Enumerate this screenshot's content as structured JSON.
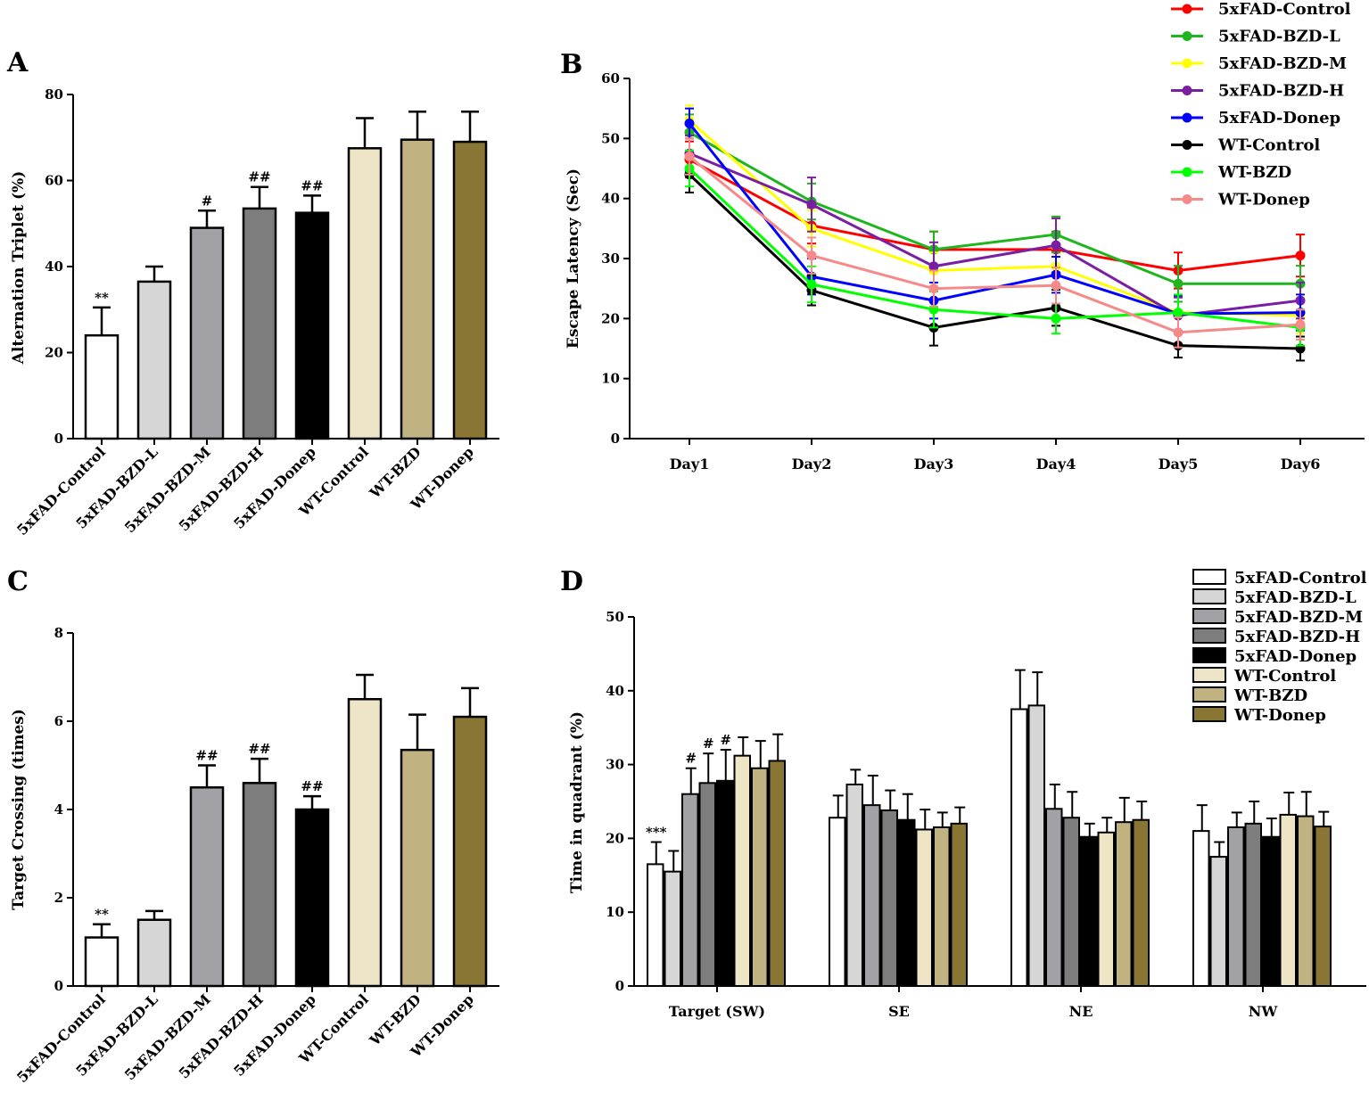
{
  "colors": {
    "5xFAD-Control": "#ffffff",
    "5xFAD-BZD-L": "#d6d6d6",
    "5xFAD-BZD-M": "#a2a2a6",
    "5xFAD-BZD-H": "#7d7d7d",
    "5xFAD-Donep": "#000000",
    "WT-Control": "#ede5c6",
    "WT-BZD": "#c1b381",
    "WT-Donep": "#8a7634"
  },
  "line_colors": {
    "5xFAD-Control": "#ff0000",
    "5xFAD-BZD-L": "#1fb51f",
    "5xFAD-BZD-M": "#ffff00",
    "5xFAD-BZD-H": "#7a1fa2",
    "5xFAD-Donep": "#0000ff",
    "WT-Control": "#000000",
    "WT-BZD": "#00ff00",
    "WT-Donep": "#f48a8a"
  },
  "chart_data": [
    {
      "panel": "A",
      "type": "bar",
      "ylabel": "Alternation Triplet (%)",
      "ylim": [
        0,
        80
      ],
      "yticks": [
        0,
        20,
        40,
        60,
        80
      ],
      "categories": [
        "5xFAD-Control",
        "5xFAD-BZD-L",
        "5xFAD-BZD-M",
        "5xFAD-BZD-H",
        "5xFAD-Donep",
        "WT-Control",
        "WT-BZD",
        "WT-Donep"
      ],
      "values": [
        24,
        36.5,
        49,
        53.5,
        52.5,
        67.5,
        69.5,
        69
      ],
      "errors": [
        6.5,
        3.5,
        4,
        5,
        4,
        7,
        6.5,
        7
      ],
      "annotations": [
        "**",
        "",
        "#",
        "##",
        "##",
        "",
        "",
        ""
      ]
    },
    {
      "panel": "B",
      "type": "line",
      "ylabel": "Escape Latency (Sec)",
      "ylim": [
        0,
        60
      ],
      "yticks": [
        0,
        10,
        20,
        30,
        40,
        50,
        60
      ],
      "x": [
        "Day1",
        "Day2",
        "Day3",
        "Day4",
        "Day5",
        "Day6"
      ],
      "series": [
        {
          "name": "5xFAD-Control",
          "values": [
            46.5,
            35.5,
            31.5,
            31.5,
            28,
            30.5
          ],
          "errors": [
            3,
            3,
            3,
            3,
            3,
            3.5
          ]
        },
        {
          "name": "5xFAD-BZD-L",
          "values": [
            51,
            39.5,
            31.5,
            34,
            25.8,
            25.8
          ],
          "errors": [
            3,
            3,
            3,
            3,
            3,
            3
          ]
        },
        {
          "name": "5xFAD-BZD-M",
          "values": [
            53,
            35,
            28,
            28.7,
            21,
            20.5
          ],
          "errors": [
            2.5,
            3,
            3,
            3,
            3,
            3
          ]
        },
        {
          "name": "5xFAD-BZD-H",
          "values": [
            47.5,
            39,
            28.7,
            32.2,
            20.5,
            23
          ],
          "errors": [
            3,
            4.5,
            4,
            4.5,
            3,
            3
          ]
        },
        {
          "name": "5xFAD-Donep",
          "values": [
            52.5,
            27,
            23,
            27.3,
            20.8,
            21
          ],
          "errors": [
            2.5,
            3,
            3,
            3,
            3,
            3
          ]
        },
        {
          "name": "WT-Control",
          "values": [
            44,
            24.7,
            18.5,
            21.8,
            15.5,
            15
          ],
          "errors": [
            3,
            2.5,
            3,
            3,
            2,
            2
          ]
        },
        {
          "name": "WT-BZD",
          "values": [
            45,
            25.7,
            21.5,
            20,
            21,
            18.5
          ],
          "errors": [
            3,
            3,
            3,
            2.5,
            3,
            3
          ]
        },
        {
          "name": "WT-Donep",
          "values": [
            47,
            30.5,
            25,
            25.5,
            17.7,
            19
          ],
          "errors": [
            3,
            3,
            3,
            3,
            2.5,
            2.5
          ]
        }
      ],
      "legend": [
        "5xFAD-Control",
        "5xFAD-BZD-L",
        "5xFAD-BZD-M",
        "5xFAD-BZD-H",
        "5xFAD-Donep",
        "WT-Control",
        "WT-BZD",
        "WT-Donep"
      ]
    },
    {
      "panel": "C",
      "type": "bar",
      "ylabel": "Target Crossing (times)",
      "ylim": [
        0,
        8
      ],
      "yticks": [
        0,
        2,
        4,
        6,
        8
      ],
      "categories": [
        "5xFAD-Control",
        "5xFAD-BZD-L",
        "5xFAD-BZD-M",
        "5xFAD-BZD-H",
        "5xFAD-Donep",
        "WT-Control",
        "WT-BZD",
        "WT-Donep"
      ],
      "values": [
        1.1,
        1.5,
        4.5,
        4.6,
        4,
        6.5,
        5.35,
        6.1
      ],
      "errors": [
        0.3,
        0.2,
        0.5,
        0.55,
        0.3,
        0.55,
        0.8,
        0.65
      ],
      "annotations": [
        "**",
        "",
        "##",
        "##",
        "##",
        "",
        "",
        ""
      ]
    },
    {
      "panel": "D",
      "type": "bar",
      "ylabel": "Time in quadrant (%)",
      "ylim": [
        0,
        50
      ],
      "yticks": [
        0,
        10,
        20,
        30,
        40,
        50
      ],
      "categories": [
        "Target (SW)",
        "SE",
        "NE",
        "NW"
      ],
      "series": [
        {
          "name": "5xFAD-Control",
          "values": [
            16.5,
            22.8,
            37.5,
            21
          ],
          "errors": [
            3,
            3,
            5.3,
            3.5
          ]
        },
        {
          "name": "5xFAD-BZD-L",
          "values": [
            15.5,
            27.3,
            38,
            17.5
          ],
          "errors": [
            2.8,
            2,
            4.5,
            2
          ]
        },
        {
          "name": "5xFAD-BZD-M",
          "values": [
            26,
            24.5,
            24,
            21.5
          ],
          "errors": [
            3.5,
            4,
            3.3,
            2
          ]
        },
        {
          "name": "5xFAD-BZD-H",
          "values": [
            27.5,
            23.8,
            22.8,
            22
          ],
          "errors": [
            4,
            2.7,
            3.5,
            3
          ]
        },
        {
          "name": "5xFAD-Donep",
          "values": [
            27.8,
            22.5,
            20.2,
            20.2
          ],
          "errors": [
            4.2,
            3.5,
            1.8,
            2.5
          ]
        },
        {
          "name": "WT-Control",
          "values": [
            31.2,
            21.2,
            20.8,
            23.2
          ],
          "errors": [
            2.5,
            2.7,
            2,
            3
          ]
        },
        {
          "name": "WT-BZD",
          "values": [
            29.5,
            21.5,
            22.2,
            23
          ],
          "errors": [
            3.7,
            2,
            3.3,
            3.3
          ]
        },
        {
          "name": "WT-Donep",
          "values": [
            30.5,
            22,
            22.5,
            21.6
          ],
          "errors": [
            3.6,
            2.2,
            2.5,
            2
          ]
        }
      ],
      "annotations": [
        {
          "category": 0,
          "series": 0,
          "text": "***"
        },
        {
          "category": 0,
          "series": 2,
          "text": "#"
        },
        {
          "category": 0,
          "series": 3,
          "text": "#"
        },
        {
          "category": 0,
          "series": 4,
          "text": "#"
        }
      ],
      "legend": [
        "5xFAD-Control",
        "5xFAD-BZD-L",
        "5xFAD-BZD-M",
        "5xFAD-BZD-H",
        "5xFAD-Donep",
        "WT-Control",
        "WT-BZD",
        "WT-Donep"
      ]
    }
  ]
}
